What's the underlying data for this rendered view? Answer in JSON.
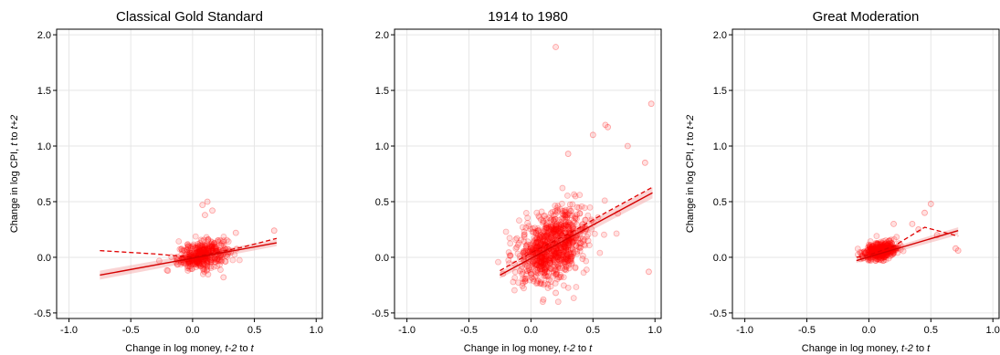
{
  "chart_data": [
    {
      "type": "scatter",
      "title": "Classical Gold Standard",
      "xlabel_parts": [
        {
          "text": "Change in log money, ",
          "italic": false
        },
        {
          "text": "t-2",
          "italic": true
        },
        {
          "text": " to ",
          "italic": false
        },
        {
          "text": "t",
          "italic": true
        }
      ],
      "ylabel_parts": [
        {
          "text": "Change in log CPI, ",
          "italic": false
        },
        {
          "text": "t",
          "italic": true
        },
        {
          "text": " to ",
          "italic": false
        },
        {
          "text": "t+2",
          "italic": true
        }
      ],
      "xlim": [
        -1.1,
        1.05
      ],
      "ylim": [
        -0.55,
        2.05
      ],
      "xticks": [
        -1.0,
        -0.5,
        0.0,
        0.5,
        1.0
      ],
      "xtick_labels": [
        "-1.0",
        "-0.5",
        "0.0",
        "0.5",
        "1.0"
      ],
      "yticks": [
        -0.5,
        0.0,
        0.5,
        1.0,
        1.5,
        2.0
      ],
      "ytick_labels": [
        "-0.5",
        "0.0",
        "0.5",
        "1.0",
        "1.5",
        "2.0"
      ],
      "grid": true,
      "point_color": "#ff0000",
      "cloud": {
        "x_center": 0.08,
        "x_sd": 0.1,
        "y_center": 0.02,
        "y_sd": 0.06,
        "count": 420,
        "x_min": -0.3,
        "x_max": 0.68,
        "y_min": -0.22,
        "y_max": 0.5
      },
      "extra_points": [
        [
          0.12,
          0.5
        ],
        [
          0.08,
          0.47
        ],
        [
          0.16,
          0.42
        ],
        [
          0.1,
          0.38
        ],
        [
          0.35,
          0.22
        ],
        [
          0.66,
          0.24
        ],
        [
          -0.2,
          -0.12
        ],
        [
          0.25,
          -0.18
        ]
      ],
      "fit_line": {
        "x": [
          -0.75,
          0.68
        ],
        "y": [
          -0.16,
          0.13
        ]
      },
      "fit_band": {
        "lower": [
          -0.2,
          0.1
        ],
        "upper": [
          -0.12,
          0.16
        ]
      },
      "dashed_line": {
        "x": [
          -0.75,
          -0.3,
          0.0,
          0.4,
          0.68
        ],
        "y": [
          0.06,
          0.03,
          0.0,
          0.09,
          0.17
        ]
      }
    },
    {
      "type": "scatter",
      "title": "1914 to 1980",
      "xlabel_parts": [
        {
          "text": "Change in log money, ",
          "italic": false
        },
        {
          "text": "t-2",
          "italic": true
        },
        {
          "text": " to ",
          "italic": false
        },
        {
          "text": "t",
          "italic": true
        }
      ],
      "ylabel_parts": [],
      "xlim": [
        -1.1,
        1.05
      ],
      "ylim": [
        -0.55,
        2.05
      ],
      "xticks": [
        -1.0,
        -0.5,
        0.0,
        0.5,
        1.0
      ],
      "xtick_labels": [
        "-1.0",
        "-0.5",
        "0.0",
        "0.5",
        "1.0"
      ],
      "yticks": [
        -0.5,
        0.0,
        0.5,
        1.0,
        1.5,
        2.0
      ],
      "ytick_labels": [
        "-0.5",
        "0.0",
        "0.5",
        "1.0",
        "1.5",
        "2.0"
      ],
      "grid": true,
      "point_color": "#ff0000",
      "cloud": {
        "x_center": 0.17,
        "x_sd": 0.14,
        "y_center": 0.1,
        "y_sd": 0.15,
        "count": 900,
        "x_min": -0.27,
        "x_max": 0.98,
        "y_min": -0.4,
        "y_max": 0.95
      },
      "extra_points": [
        [
          0.2,
          1.89
        ],
        [
          0.97,
          1.38
        ],
        [
          0.6,
          1.19
        ],
        [
          0.62,
          1.17
        ],
        [
          0.5,
          1.1
        ],
        [
          0.78,
          1.0
        ],
        [
          0.3,
          0.93
        ],
        [
          0.92,
          0.85
        ],
        [
          0.95,
          -0.13
        ],
        [
          0.1,
          -0.38
        ],
        [
          0.2,
          -0.32
        ]
      ],
      "fit_line": {
        "x": [
          -0.25,
          0.98
        ],
        "y": [
          -0.16,
          0.58
        ]
      },
      "fit_band": {
        "lower": [
          -0.19,
          0.53
        ],
        "upper": [
          -0.13,
          0.63
        ]
      },
      "dashed_line": {
        "x": [
          -0.25,
          0.0,
          0.3,
          0.6,
          0.98
        ],
        "y": [
          -0.12,
          0.04,
          0.21,
          0.4,
          0.63
        ]
      }
    },
    {
      "type": "scatter",
      "title": "Great Moderation",
      "xlabel_parts": [
        {
          "text": "Change in log money, ",
          "italic": false
        },
        {
          "text": "t-2",
          "italic": true
        },
        {
          "text": " to ",
          "italic": false
        },
        {
          "text": "t",
          "italic": true
        }
      ],
      "ylabel_parts": [
        {
          "text": "Change in log CPI, ",
          "italic": false
        },
        {
          "text": "t",
          "italic": true
        },
        {
          "text": " to ",
          "italic": false
        },
        {
          "text": "t+2",
          "italic": true
        }
      ],
      "xlim": [
        -1.1,
        1.05
      ],
      "ylim": [
        -0.55,
        2.05
      ],
      "xticks": [
        -1.0,
        -0.5,
        0.0,
        0.5,
        1.0
      ],
      "xtick_labels": [
        "-1.0",
        "-0.5",
        "0.0",
        "0.5",
        "1.0"
      ],
      "yticks": [
        -0.5,
        0.0,
        0.5,
        1.0,
        1.5,
        2.0
      ],
      "ytick_labels": [
        "-0.5",
        "0.0",
        "0.5",
        "1.0",
        "1.5",
        "2.0"
      ],
      "grid": true,
      "point_color": "#ff0000",
      "cloud": {
        "x_center": 0.1,
        "x_sd": 0.07,
        "y_center": 0.06,
        "y_sd": 0.04,
        "count": 380,
        "x_min": -0.1,
        "x_max": 0.55,
        "y_min": -0.03,
        "y_max": 0.3
      },
      "extra_points": [
        [
          0.5,
          0.48
        ],
        [
          0.45,
          0.4
        ],
        [
          0.7,
          0.08
        ],
        [
          0.72,
          0.06
        ],
        [
          0.35,
          0.3
        ],
        [
          0.4,
          0.25
        ],
        [
          0.2,
          0.3
        ],
        [
          0.55,
          0.2
        ]
      ],
      "fit_line": {
        "x": [
          -0.1,
          0.72
        ],
        "y": [
          -0.03,
          0.24
        ]
      },
      "fit_band": {
        "lower": [
          -0.05,
          0.2
        ],
        "upper": [
          -0.01,
          0.27
        ]
      },
      "dashed_line": {
        "x": [
          -0.1,
          0.0,
          0.2,
          0.45,
          0.72
        ],
        "y": [
          0.0,
          0.02,
          0.1,
          0.27,
          0.19
        ]
      }
    }
  ]
}
